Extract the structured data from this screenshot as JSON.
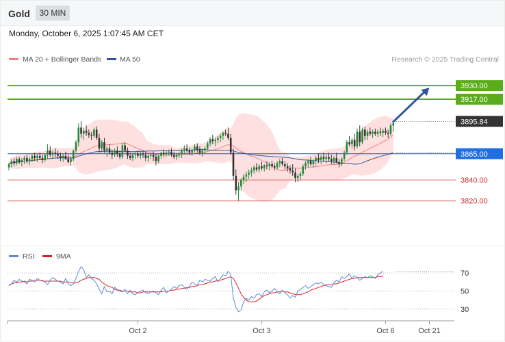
{
  "header": {
    "title": "Gold",
    "timeframe": "30 MIN"
  },
  "date_label": "Monday, October 6, 2025 1:07:45 AM CET",
  "credit": "Research © 2025 Trading Central",
  "colors": {
    "up": "#1f8a3a",
    "down": "#333333",
    "ma20": "#f08080",
    "bb": "#ffd5d5",
    "ma50": "#2f5597",
    "target": "#5aac1a",
    "resist": "#e06666",
    "arrow": "#2f5597",
    "rsi": "#5b8bd6",
    "rsi_ma": "#e02020",
    "last": "#333333"
  },
  "chart_data": [
    {
      "type": "candlestick",
      "legend": [
        {
          "label": "MA 20 + Bollinger Bands",
          "color": "#f08080"
        },
        {
          "label": "MA 50",
          "color": "#2f5597"
        }
      ],
      "ylim": [
        3782,
        3949
      ],
      "x_tick_labels": [
        "Oct 2",
        "Oct 3",
        "Oct 6",
        "Oct 21"
      ],
      "x_tick_index": [
        50,
        98,
        146,
        163
      ],
      "last_price": 3895.84,
      "levels": [
        {
          "value": 3930.0,
          "label": "3930.00",
          "kind": "target"
        },
        {
          "value": 3917.0,
          "label": "3917.00",
          "kind": "target"
        },
        {
          "value": 3865.0,
          "label": "3865.00",
          "kind": "pivot"
        },
        {
          "value": 3840.0,
          "label": "3840.00",
          "kind": "support"
        },
        {
          "value": 3820.0,
          "label": "3820.00",
          "kind": "support"
        }
      ],
      "projection": {
        "from_index": 148,
        "from_value": 3895,
        "to_index": 163,
        "to_value": 3928
      },
      "ohlc": [
        [
          3852,
          3856,
          3849,
          3855
        ],
        [
          3855,
          3860,
          3852,
          3858
        ],
        [
          3858,
          3861,
          3853,
          3856
        ],
        [
          3856,
          3862,
          3854,
          3860
        ],
        [
          3860,
          3862,
          3855,
          3857
        ],
        [
          3857,
          3861,
          3853,
          3859
        ],
        [
          3859,
          3863,
          3855,
          3861
        ],
        [
          3861,
          3864,
          3856,
          3858
        ],
        [
          3858,
          3862,
          3854,
          3860
        ],
        [
          3860,
          3865,
          3857,
          3863
        ],
        [
          3863,
          3866,
          3858,
          3861
        ],
        [
          3861,
          3865,
          3857,
          3863
        ],
        [
          3863,
          3866,
          3859,
          3861
        ],
        [
          3861,
          3864,
          3856,
          3859
        ],
        [
          3859,
          3865,
          3857,
          3864
        ],
        [
          3864,
          3874,
          3860,
          3868
        ],
        [
          3868,
          3872,
          3862,
          3864
        ],
        [
          3864,
          3868,
          3860,
          3866
        ],
        [
          3866,
          3870,
          3862,
          3865
        ],
        [
          3865,
          3868,
          3860,
          3863
        ],
        [
          3863,
          3866,
          3858,
          3861
        ],
        [
          3861,
          3865,
          3857,
          3863
        ],
        [
          3863,
          3867,
          3859,
          3860
        ],
        [
          3860,
          3864,
          3856,
          3857
        ],
        [
          3857,
          3862,
          3854,
          3860
        ],
        [
          3860,
          3869,
          3858,
          3868
        ],
        [
          3868,
          3878,
          3866,
          3876
        ],
        [
          3876,
          3894,
          3872,
          3890
        ],
        [
          3890,
          3896,
          3880,
          3884
        ],
        [
          3884,
          3890,
          3878,
          3887
        ],
        [
          3887,
          3892,
          3882,
          3885
        ],
        [
          3885,
          3888,
          3880,
          3883
        ],
        [
          3883,
          3886,
          3878,
          3882
        ],
        [
          3882,
          3890,
          3880,
          3888
        ],
        [
          3888,
          3891,
          3878,
          3880
        ],
        [
          3880,
          3884,
          3866,
          3870
        ],
        [
          3870,
          3878,
          3866,
          3876
        ],
        [
          3876,
          3880,
          3866,
          3868
        ],
        [
          3868,
          3872,
          3862,
          3870
        ],
        [
          3870,
          3874,
          3864,
          3866
        ],
        [
          3866,
          3869,
          3860,
          3864
        ],
        [
          3864,
          3870,
          3862,
          3868
        ],
        [
          3868,
          3872,
          3862,
          3865
        ],
        [
          3865,
          3868,
          3860,
          3862
        ],
        [
          3862,
          3875,
          3860,
          3873
        ],
        [
          3873,
          3876,
          3866,
          3868
        ],
        [
          3868,
          3871,
          3860,
          3863
        ],
        [
          3863,
          3866,
          3859,
          3861
        ],
        [
          3861,
          3866,
          3858,
          3864
        ],
        [
          3864,
          3867,
          3860,
          3865
        ],
        [
          3865,
          3868,
          3861,
          3863
        ],
        [
          3863,
          3867,
          3860,
          3865
        ],
        [
          3865,
          3868,
          3861,
          3864
        ],
        [
          3864,
          3867,
          3858,
          3861
        ],
        [
          3861,
          3865,
          3857,
          3863
        ],
        [
          3863,
          3866,
          3860,
          3864
        ],
        [
          3864,
          3867,
          3858,
          3862
        ],
        [
          3862,
          3865,
          3854,
          3858
        ],
        [
          3858,
          3864,
          3856,
          3863
        ],
        [
          3863,
          3867,
          3860,
          3866
        ],
        [
          3866,
          3869,
          3862,
          3865
        ],
        [
          3865,
          3868,
          3862,
          3866
        ],
        [
          3866,
          3869,
          3863,
          3867
        ],
        [
          3867,
          3870,
          3862,
          3864
        ],
        [
          3864,
          3867,
          3860,
          3862
        ],
        [
          3862,
          3866,
          3859,
          3864
        ],
        [
          3864,
          3867,
          3861,
          3865
        ],
        [
          3865,
          3870,
          3861,
          3868
        ],
        [
          3868,
          3873,
          3865,
          3870
        ],
        [
          3870,
          3874,
          3866,
          3868
        ],
        [
          3868,
          3871,
          3864,
          3866
        ],
        [
          3866,
          3870,
          3863,
          3868
        ],
        [
          3868,
          3874,
          3866,
          3872
        ],
        [
          3872,
          3875,
          3866,
          3869
        ],
        [
          3869,
          3872,
          3864,
          3866
        ],
        [
          3866,
          3870,
          3862,
          3868
        ],
        [
          3868,
          3872,
          3865,
          3870
        ],
        [
          3870,
          3877,
          3868,
          3875
        ],
        [
          3875,
          3881,
          3872,
          3879
        ],
        [
          3879,
          3883,
          3874,
          3877
        ],
        [
          3877,
          3880,
          3872,
          3878
        ],
        [
          3878,
          3882,
          3875,
          3880
        ],
        [
          3880,
          3884,
          3876,
          3882
        ],
        [
          3882,
          3886,
          3878,
          3885
        ],
        [
          3885,
          3888,
          3882,
          3884
        ],
        [
          3884,
          3890,
          3878,
          3880
        ],
        [
          3880,
          3884,
          3864,
          3866
        ],
        [
          3866,
          3870,
          3840,
          3844
        ],
        [
          3844,
          3850,
          3826,
          3830
        ],
        [
          3830,
          3838,
          3820,
          3834
        ],
        [
          3834,
          3842,
          3830,
          3840
        ],
        [
          3840,
          3846,
          3836,
          3843
        ],
        [
          3843,
          3848,
          3838,
          3845
        ],
        [
          3845,
          3850,
          3841,
          3847
        ],
        [
          3847,
          3852,
          3843,
          3849
        ],
        [
          3849,
          3854,
          3846,
          3852
        ],
        [
          3852,
          3856,
          3848,
          3850
        ],
        [
          3850,
          3855,
          3847,
          3853
        ],
        [
          3853,
          3857,
          3849,
          3851
        ],
        [
          3851,
          3855,
          3848,
          3854
        ],
        [
          3854,
          3858,
          3850,
          3853
        ],
        [
          3853,
          3857,
          3849,
          3855
        ],
        [
          3855,
          3858,
          3851,
          3853
        ],
        [
          3853,
          3856,
          3849,
          3852
        ],
        [
          3852,
          3858,
          3850,
          3856
        ],
        [
          3856,
          3860,
          3852,
          3858
        ],
        [
          3858,
          3861,
          3853,
          3855
        ],
        [
          3855,
          3858,
          3850,
          3853
        ],
        [
          3853,
          3856,
          3848,
          3851
        ],
        [
          3851,
          3854,
          3846,
          3849
        ],
        [
          3849,
          3855,
          3844,
          3847
        ],
        [
          3847,
          3851,
          3838,
          3842
        ],
        [
          3842,
          3846,
          3838,
          3844
        ],
        [
          3844,
          3848,
          3840,
          3846
        ],
        [
          3846,
          3855,
          3844,
          3853
        ],
        [
          3853,
          3858,
          3850,
          3856
        ],
        [
          3856,
          3860,
          3852,
          3858
        ],
        [
          3858,
          3862,
          3853,
          3855
        ],
        [
          3855,
          3860,
          3852,
          3858
        ],
        [
          3858,
          3863,
          3854,
          3861
        ],
        [
          3861,
          3865,
          3856,
          3859
        ],
        [
          3859,
          3864,
          3855,
          3862
        ],
        [
          3862,
          3866,
          3857,
          3860
        ],
        [
          3860,
          3864,
          3856,
          3862
        ],
        [
          3862,
          3866,
          3858,
          3860
        ],
        [
          3860,
          3864,
          3855,
          3858
        ],
        [
          3858,
          3863,
          3855,
          3861
        ],
        [
          3861,
          3866,
          3856,
          3857
        ],
        [
          3857,
          3860,
          3852,
          3855
        ],
        [
          3855,
          3862,
          3853,
          3860
        ],
        [
          3860,
          3868,
          3858,
          3866
        ],
        [
          3866,
          3878,
          3864,
          3876
        ],
        [
          3876,
          3882,
          3872,
          3874
        ],
        [
          3874,
          3880,
          3870,
          3878
        ],
        [
          3878,
          3884,
          3868,
          3872
        ],
        [
          3872,
          3889,
          3870,
          3886
        ],
        [
          3886,
          3892,
          3872,
          3876
        ],
        [
          3876,
          3890,
          3874,
          3888
        ],
        [
          3888,
          3891,
          3878,
          3882
        ],
        [
          3882,
          3888,
          3878,
          3886
        ],
        [
          3886,
          3890,
          3882,
          3884
        ],
        [
          3884,
          3888,
          3880,
          3886
        ],
        [
          3886,
          3889,
          3882,
          3884
        ],
        [
          3884,
          3888,
          3881,
          3886
        ],
        [
          3886,
          3890,
          3882,
          3885
        ],
        [
          3885,
          3889,
          3881,
          3887
        ],
        [
          3887,
          3890,
          3883,
          3885
        ],
        [
          3885,
          3888,
          3880,
          3884
        ],
        [
          3884,
          3894,
          3882,
          3892
        ],
        [
          3892,
          3896,
          3886,
          3894
        ]
      ]
    },
    {
      "type": "line",
      "legend": [
        {
          "label": "RSI",
          "color": "#5b8bd6"
        },
        {
          "label": "9MA",
          "color": "#e02020"
        }
      ],
      "ylim": [
        20,
        80
      ],
      "y_ticks": [
        30,
        50,
        70
      ],
      "series": [
        {
          "name": "RSI",
          "values": [
            56,
            58,
            62,
            60,
            63,
            61,
            60,
            58,
            63,
            62,
            60,
            64,
            62,
            62,
            60,
            57,
            62,
            65,
            63,
            61,
            60,
            58,
            64,
            58,
            56,
            58,
            64,
            72,
            77,
            74,
            65,
            68,
            64,
            62,
            58,
            52,
            47,
            55,
            49,
            50,
            47,
            54,
            52,
            50,
            49,
            52,
            47,
            51,
            47,
            46,
            48,
            50,
            51,
            48,
            47,
            49,
            50,
            48,
            46,
            51,
            54,
            48,
            50,
            52,
            55,
            53,
            56,
            57,
            54,
            52,
            55,
            60,
            58,
            56,
            62,
            60,
            63,
            62,
            61,
            64,
            66,
            60,
            64,
            68,
            67,
            72,
            68,
            42,
            32,
            27,
            29,
            38,
            42,
            40,
            44,
            42,
            46,
            47,
            44,
            49,
            51,
            48,
            50,
            53,
            49,
            47,
            51,
            48,
            46,
            42,
            45,
            43,
            50,
            52,
            54,
            56,
            53,
            55,
            57,
            59,
            58,
            60,
            57,
            56,
            55,
            54,
            59,
            62,
            60,
            66,
            64,
            66,
            69,
            64,
            67,
            65,
            62,
            64,
            66,
            65,
            67,
            66,
            64,
            68,
            70,
            72
          ]
        },
        {
          "name": "9MA",
          "values": [
            57,
            58,
            59,
            59,
            60,
            60,
            61,
            60,
            61,
            61,
            62,
            62,
            62,
            61,
            61,
            61,
            61,
            61,
            61,
            61,
            61,
            60,
            60,
            60,
            59,
            59,
            59,
            60,
            62,
            63,
            64,
            65,
            65,
            65,
            64,
            63,
            60,
            58,
            56,
            55,
            54,
            52,
            51,
            51,
            50,
            50,
            50,
            49,
            49,
            49,
            48,
            48,
            49,
            49,
            49,
            49,
            49,
            49,
            49,
            49,
            50,
            50,
            50,
            51,
            51,
            52,
            52,
            53,
            53,
            54,
            54,
            55,
            55,
            56,
            57,
            57,
            58,
            59,
            60,
            60,
            61,
            62,
            62,
            63,
            64,
            65,
            66,
            64,
            59,
            53,
            47,
            43,
            40,
            38,
            38,
            38,
            39,
            41,
            43,
            45,
            46,
            47,
            48,
            48,
            49,
            49,
            50,
            49,
            49,
            48,
            47,
            46,
            46,
            46,
            47,
            48,
            49,
            51,
            52,
            53,
            54,
            55,
            56,
            57,
            57,
            57,
            58,
            58,
            59,
            60,
            61,
            62,
            63,
            64,
            64,
            65,
            65,
            65,
            65,
            65,
            65,
            65,
            65,
            66,
            66,
            67
          ]
        }
      ]
    }
  ]
}
